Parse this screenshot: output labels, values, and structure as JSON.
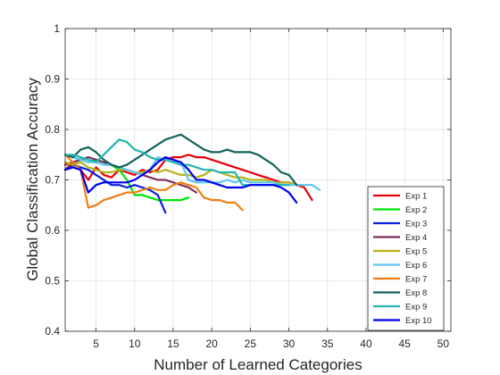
{
  "chart_data": {
    "type": "line",
    "title": "",
    "xlabel": "Number of Learned Categories",
    "ylabel": "Global Classification Accuracy",
    "xlim": [
      1,
      51
    ],
    "ylim": [
      0.4,
      1
    ],
    "xticks": [
      5,
      10,
      15,
      20,
      25,
      30,
      35,
      40,
      45,
      50
    ],
    "yticks": [
      0.4,
      0.5,
      0.6,
      0.7,
      0.8,
      0.9,
      1
    ],
    "xtick_labels": [
      "5",
      "10",
      "15",
      "20",
      "25",
      "30",
      "35",
      "40",
      "45",
      "50"
    ],
    "ytick_labels": [
      "0.4",
      "0.5",
      "0.6",
      "0.7",
      "0.8",
      "0.9",
      "1"
    ],
    "grid": true,
    "legend_position": "bottom-right",
    "series": [
      {
        "name": "Exp 1",
        "color": "#e8000b",
        "x": [
          1,
          2,
          3,
          4,
          5,
          6,
          7,
          8,
          9,
          10,
          11,
          12,
          13,
          14,
          15,
          16,
          17,
          18,
          19,
          20,
          21,
          22,
          23,
          24,
          25,
          26,
          27,
          28,
          29,
          30,
          31,
          32,
          33
        ],
        "y": [
          0.73,
          0.735,
          0.72,
          0.7,
          0.725,
          0.71,
          0.705,
          0.72,
          0.715,
          0.71,
          0.72,
          0.715,
          0.72,
          0.74,
          0.745,
          0.745,
          0.75,
          0.745,
          0.745,
          0.74,
          0.735,
          0.73,
          0.725,
          0.72,
          0.715,
          0.71,
          0.705,
          0.7,
          0.695,
          0.695,
          0.69,
          0.685,
          0.66
        ]
      },
      {
        "name": "Exp 2",
        "color": "#00e600",
        "x": [
          1,
          2,
          3,
          4,
          5,
          6,
          7,
          8,
          9,
          10,
          11,
          12,
          13,
          14,
          15,
          16,
          17
        ],
        "y": [
          0.75,
          0.745,
          0.74,
          0.735,
          0.74,
          0.735,
          0.73,
          0.72,
          0.7,
          0.67,
          0.67,
          0.665,
          0.66,
          0.66,
          0.66,
          0.66,
          0.665
        ]
      },
      {
        "name": "Exp 3",
        "color": "#0a1fd9",
        "x": [
          1,
          2,
          3,
          4,
          5,
          6,
          7,
          8,
          9,
          10,
          11,
          12,
          13,
          14
        ],
        "y": [
          0.72,
          0.73,
          0.725,
          0.72,
          0.71,
          0.7,
          0.69,
          0.69,
          0.685,
          0.69,
          0.685,
          0.68,
          0.67,
          0.635
        ]
      },
      {
        "name": "Exp 4",
        "color": "#7e2f5a",
        "x": [
          1,
          2,
          3,
          4,
          5,
          6,
          7,
          8,
          9,
          10,
          11,
          12,
          13,
          14,
          15,
          16,
          17,
          18
        ],
        "y": [
          0.72,
          0.735,
          0.74,
          0.745,
          0.74,
          0.735,
          0.73,
          0.725,
          0.72,
          0.715,
          0.71,
          0.705,
          0.7,
          0.7,
          0.695,
          0.69,
          0.685,
          0.675
        ]
      },
      {
        "name": "Exp 5",
        "color": "#b5b21a",
        "x": [
          1,
          2,
          3,
          4,
          5,
          6,
          7,
          8,
          9,
          10,
          11,
          12,
          13,
          14,
          15,
          16,
          17,
          18,
          19,
          20,
          21,
          22,
          23,
          24,
          25,
          26,
          27,
          28,
          29,
          30,
          31,
          32
        ],
        "y": [
          0.735,
          0.73,
          0.735,
          0.725,
          0.72,
          0.715,
          0.715,
          0.72,
          0.72,
          0.715,
          0.715,
          0.72,
          0.715,
          0.72,
          0.715,
          0.71,
          0.71,
          0.705,
          0.71,
          0.72,
          0.715,
          0.71,
          0.705,
          0.705,
          0.7,
          0.7,
          0.7,
          0.695,
          0.695,
          0.695,
          0.69,
          0.69
        ]
      },
      {
        "name": "Exp 6",
        "color": "#5bc8f0",
        "x": [
          1,
          2,
          3,
          4,
          5,
          6,
          7,
          8,
          9,
          10,
          11,
          12,
          13,
          14,
          15,
          16,
          17,
          18,
          19,
          20,
          21,
          22,
          23,
          24,
          25,
          26,
          27,
          28,
          29,
          30,
          31,
          32,
          33,
          34
        ],
        "y": [
          0.75,
          0.745,
          0.74,
          0.735,
          0.735,
          0.73,
          0.73,
          0.725,
          0.72,
          0.715,
          0.71,
          0.72,
          0.745,
          0.74,
          0.735,
          0.735,
          0.7,
          0.695,
          0.695,
          0.695,
          0.695,
          0.7,
          0.695,
          0.7,
          0.695,
          0.695,
          0.695,
          0.695,
          0.69,
          0.69,
          0.69,
          0.69,
          0.69,
          0.68
        ]
      },
      {
        "name": "Exp 7",
        "color": "#f07f13",
        "x": [
          1,
          2,
          3,
          4,
          5,
          6,
          7,
          8,
          9,
          10,
          11,
          12,
          13,
          14,
          15,
          16,
          17,
          18,
          19,
          20,
          21,
          22,
          23,
          24
        ],
        "y": [
          0.75,
          0.735,
          0.72,
          0.645,
          0.65,
          0.66,
          0.665,
          0.67,
          0.675,
          0.675,
          0.68,
          0.685,
          0.68,
          0.68,
          0.69,
          0.695,
          0.69,
          0.685,
          0.665,
          0.66,
          0.66,
          0.655,
          0.655,
          0.64
        ]
      },
      {
        "name": "Exp 8",
        "color": "#12625a",
        "x": [
          1,
          2,
          3,
          4,
          5,
          6,
          7,
          8,
          9,
          10,
          11,
          12,
          13,
          14,
          15,
          16,
          17,
          18,
          19,
          20,
          21,
          22,
          23,
          24,
          25,
          26,
          27,
          28,
          29,
          30,
          31
        ],
        "y": [
          0.75,
          0.745,
          0.76,
          0.765,
          0.755,
          0.74,
          0.73,
          0.725,
          0.73,
          0.74,
          0.75,
          0.76,
          0.77,
          0.78,
          0.785,
          0.79,
          0.78,
          0.77,
          0.76,
          0.755,
          0.755,
          0.76,
          0.755,
          0.755,
          0.755,
          0.75,
          0.74,
          0.73,
          0.715,
          0.71,
          0.69
        ]
      },
      {
        "name": "Exp 9",
        "color": "#22b5b0",
        "x": [
          1,
          2,
          3,
          4,
          5,
          6,
          7,
          8,
          9,
          10,
          11,
          12,
          13,
          14,
          15,
          16,
          17,
          18,
          19,
          20,
          21,
          22,
          23,
          24,
          25,
          26,
          27,
          28,
          29,
          30
        ],
        "y": [
          0.75,
          0.75,
          0.745,
          0.74,
          0.735,
          0.75,
          0.765,
          0.78,
          0.775,
          0.76,
          0.755,
          0.745,
          0.74,
          0.74,
          0.735,
          0.73,
          0.73,
          0.725,
          0.72,
          0.72,
          0.715,
          0.715,
          0.715,
          0.69,
          0.69,
          0.69,
          0.69,
          0.69,
          0.69,
          0.69
        ]
      },
      {
        "name": "Exp 10",
        "color": "#0000ee",
        "x": [
          1,
          2,
          3,
          4,
          5,
          6,
          7,
          8,
          9,
          10,
          11,
          12,
          13,
          14,
          15,
          16,
          17,
          18,
          19,
          20,
          21,
          22,
          23,
          24,
          25,
          26,
          27,
          28,
          29,
          30,
          31
        ],
        "y": [
          0.72,
          0.725,
          0.72,
          0.675,
          0.69,
          0.695,
          0.695,
          0.695,
          0.695,
          0.7,
          0.71,
          0.72,
          0.735,
          0.745,
          0.74,
          0.735,
          0.72,
          0.7,
          0.7,
          0.695,
          0.69,
          0.685,
          0.685,
          0.685,
          0.69,
          0.69,
          0.69,
          0.69,
          0.685,
          0.675,
          0.655
        ]
      }
    ]
  }
}
